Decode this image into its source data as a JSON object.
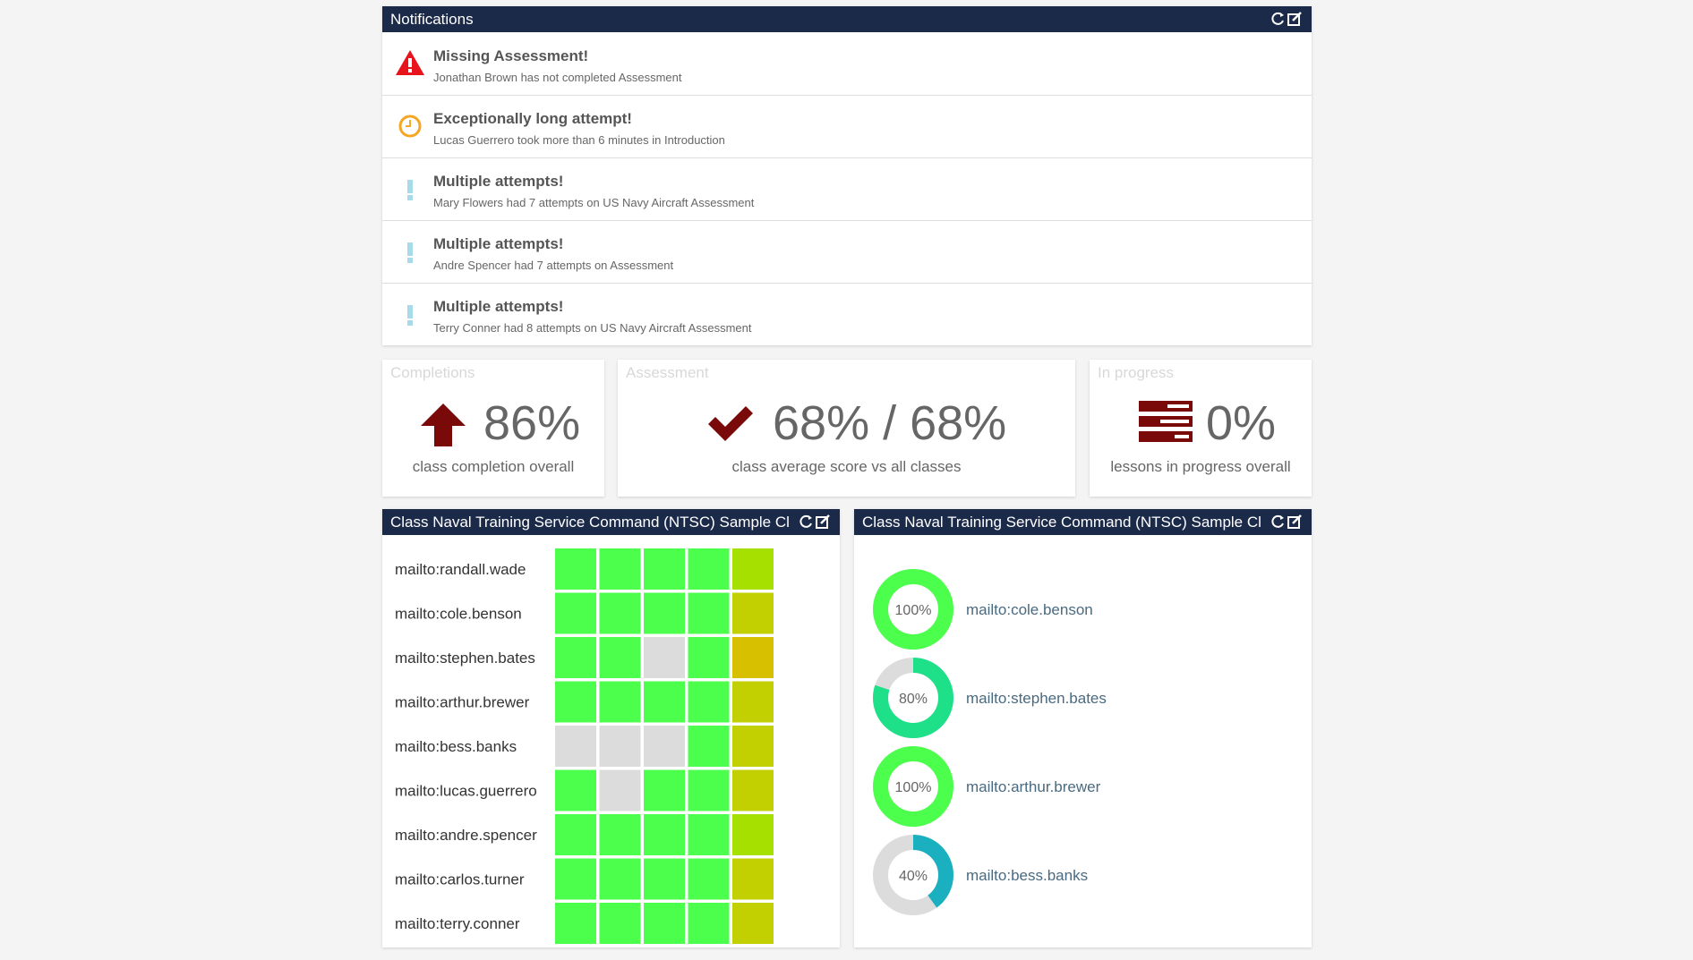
{
  "notifications": {
    "title": "Notifications",
    "items": [
      {
        "title": "Missing Assessment!",
        "text": "Jonathan Brown has not completed Assessment"
      },
      {
        "title": "Exceptionally long attempt!",
        "text": "Lucas Guerrero took more than 6 minutes in Introduction"
      },
      {
        "title": "Multiple attempts!",
        "text": "Mary Flowers had 7 attempts on US Navy Aircraft Assessment"
      },
      {
        "title": "Multiple attempts!",
        "text": "Andre Spencer had 7 attempts on Assessment"
      },
      {
        "title": "Multiple attempts!",
        "text": "Terry Conner had 8 attempts on US Navy Aircraft Assessment"
      }
    ]
  },
  "stats": [
    {
      "label": "Completions",
      "value": "86%",
      "caption": "class completion overall"
    },
    {
      "label": "Assessment",
      "value": "68% / 68%",
      "caption": "class average score vs all classes"
    },
    {
      "label": "In progress",
      "value": "0%",
      "caption": "lessons in progress overall"
    }
  ],
  "grid_panel": {
    "title": "Class Naval Training Service Command (NTSC) Sample Cl",
    "rows": [
      {
        "name": "mailto:randall.wade",
        "cells": [
          "#4cff4c",
          "#4cff4c",
          "#4cff4c",
          "#4cff4c",
          "#a6e000"
        ]
      },
      {
        "name": "mailto:cole.benson",
        "cells": [
          "#4cff4c",
          "#4cff4c",
          "#4cff4c",
          "#4cff4c",
          "#c2cf00"
        ]
      },
      {
        "name": "mailto:stephen.bates",
        "cells": [
          "#4cff4c",
          "#4cff4c",
          "#dcdcdc",
          "#4cff4c",
          "#d6c000"
        ]
      },
      {
        "name": "mailto:arthur.brewer",
        "cells": [
          "#4cff4c",
          "#4cff4c",
          "#4cff4c",
          "#4cff4c",
          "#c2cf00"
        ]
      },
      {
        "name": "mailto:bess.banks",
        "cells": [
          "#dcdcdc",
          "#dcdcdc",
          "#dcdcdc",
          "#4cff4c",
          "#c2cf00"
        ]
      },
      {
        "name": "mailto:lucas.guerrero",
        "cells": [
          "#4cff4c",
          "#dcdcdc",
          "#4cff4c",
          "#4cff4c",
          "#c2cf00"
        ]
      },
      {
        "name": "mailto:andre.spencer",
        "cells": [
          "#4cff4c",
          "#4cff4c",
          "#4cff4c",
          "#4cff4c",
          "#a6e000"
        ]
      },
      {
        "name": "mailto:carlos.turner",
        "cells": [
          "#4cff4c",
          "#4cff4c",
          "#4cff4c",
          "#4cff4c",
          "#c2cf00"
        ]
      },
      {
        "name": "mailto:terry.conner",
        "cells": [
          "#4cff4c",
          "#4cff4c",
          "#4cff4c",
          "#4cff4c",
          "#c2cf00"
        ]
      }
    ]
  },
  "donut_panel": {
    "title": "Class Naval Training Service Command (NTSC) Sample Cl",
    "items": [
      {
        "name": "mailto:cole.benson",
        "value": 100,
        "label": "100%",
        "color": "#4cff4c"
      },
      {
        "name": "mailto:stephen.bates",
        "value": 80,
        "label": "80%",
        "color": "#1de088"
      },
      {
        "name": "mailto:arthur.brewer",
        "value": 100,
        "label": "100%",
        "color": "#4cff4c"
      },
      {
        "name": "mailto:bess.banks",
        "value": 40,
        "label": "40%",
        "color": "#1ab0c0"
      }
    ]
  }
}
